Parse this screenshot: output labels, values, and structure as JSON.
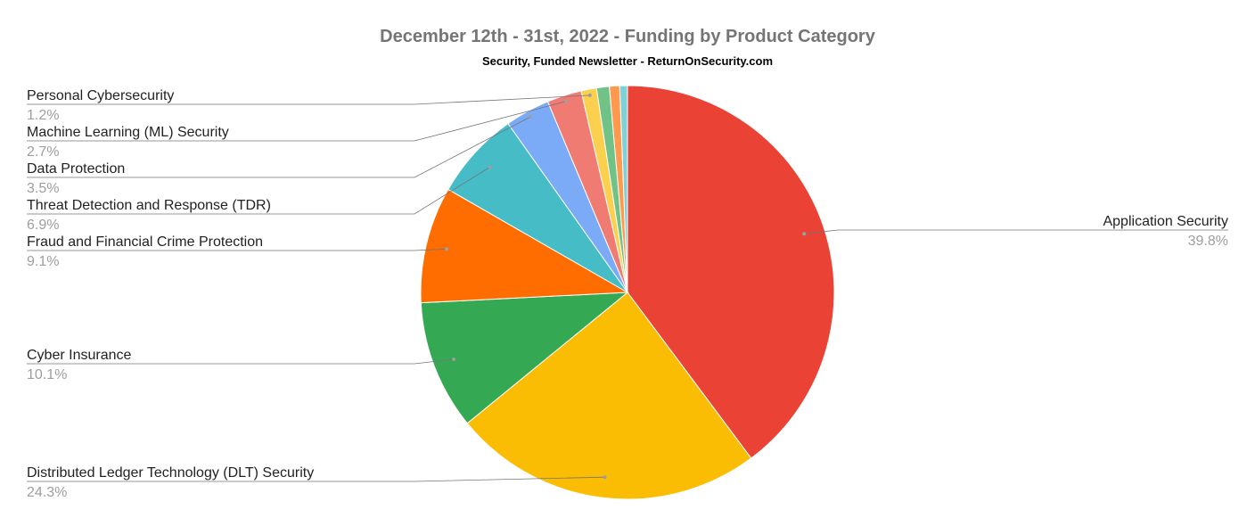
{
  "chart_data": {
    "type": "pie",
    "title": "December 12th - 31st, 2022 - Funding by Product Category",
    "subtitle": "Security, Funded Newsletter - ReturnOnSecurity.com",
    "slices": [
      {
        "label": "Application Security",
        "value": 39.8,
        "pct_label": "39.8%",
        "color": "#ea4335"
      },
      {
        "label": "Distributed Ledger Technology (DLT) Security",
        "value": 24.3,
        "pct_label": "24.3%",
        "color": "#fbbc04"
      },
      {
        "label": "Cyber Insurance",
        "value": 10.1,
        "pct_label": "10.1%",
        "color": "#34a853"
      },
      {
        "label": "Fraud and Financial Crime Protection",
        "value": 9.1,
        "pct_label": "9.1%",
        "color": "#ff6d01"
      },
      {
        "label": "Threat Detection and Response (TDR)",
        "value": 6.9,
        "pct_label": "6.9%",
        "color": "#46bdc6"
      },
      {
        "label": "Data Protection",
        "value": 3.5,
        "pct_label": "3.5%",
        "color": "#7baaf7"
      },
      {
        "label": "Machine Learning (ML) Security",
        "value": 2.7,
        "pct_label": "2.7%",
        "color": "#f07b72"
      },
      {
        "label": "Personal Cybersecurity",
        "value": 1.2,
        "pct_label": "1.2%",
        "color": "#fcd04f"
      },
      {
        "value": 1.0,
        "color": "#71c287"
      },
      {
        "value": 0.8,
        "color": "#ff994d"
      },
      {
        "value": 0.6,
        "color": "#7ed1d7"
      }
    ]
  }
}
